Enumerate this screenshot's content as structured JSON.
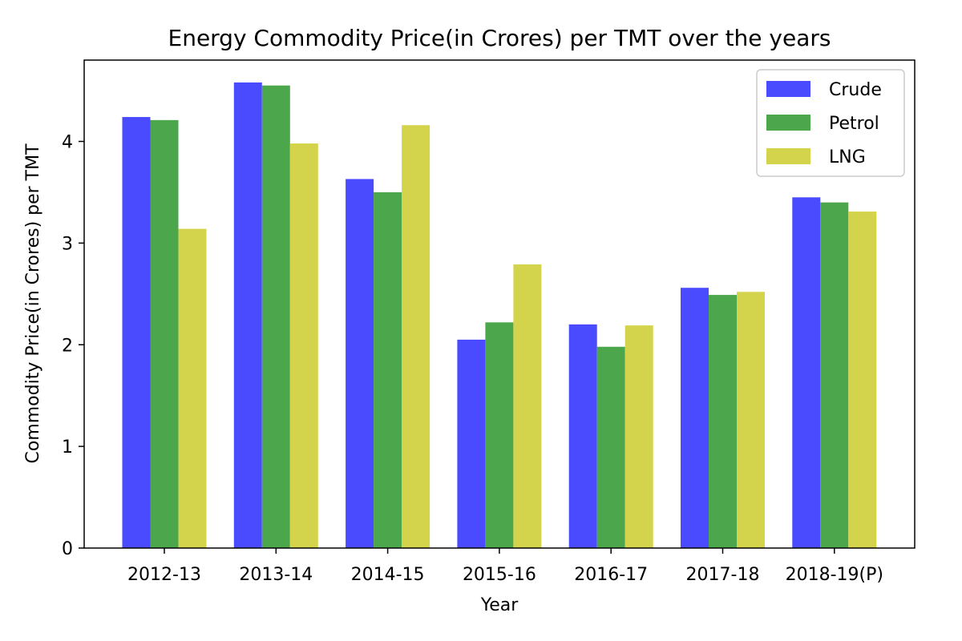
{
  "chart_data": {
    "type": "bar",
    "title": "Energy Commodity Price(in Crores) per TMT over the years",
    "xlabel": "Year",
    "ylabel": "Commodity Price(in Crores) per TMT",
    "categories": [
      "2012-13",
      "2013-14",
      "2014-15",
      "2015-16",
      "2016-17",
      "2017-18",
      "2018-19(P)"
    ],
    "ylim": [
      0,
      4.8
    ],
    "yticks": [
      "0",
      "1",
      "2",
      "3",
      "4"
    ],
    "grid": false,
    "legend_position": "top-right",
    "series": [
      {
        "name": "Crude",
        "color": "#4a4aff",
        "values": [
          4.24,
          4.58,
          3.63,
          2.05,
          2.2,
          2.56,
          3.45
        ]
      },
      {
        "name": "Petrol",
        "color": "#4ca64c",
        "values": [
          4.21,
          4.55,
          3.5,
          2.22,
          1.98,
          2.49,
          3.4
        ]
      },
      {
        "name": "LNG",
        "color": "#d4d44c",
        "values": [
          3.14,
          3.98,
          4.16,
          2.79,
          2.19,
          2.52,
          3.31
        ]
      }
    ]
  }
}
